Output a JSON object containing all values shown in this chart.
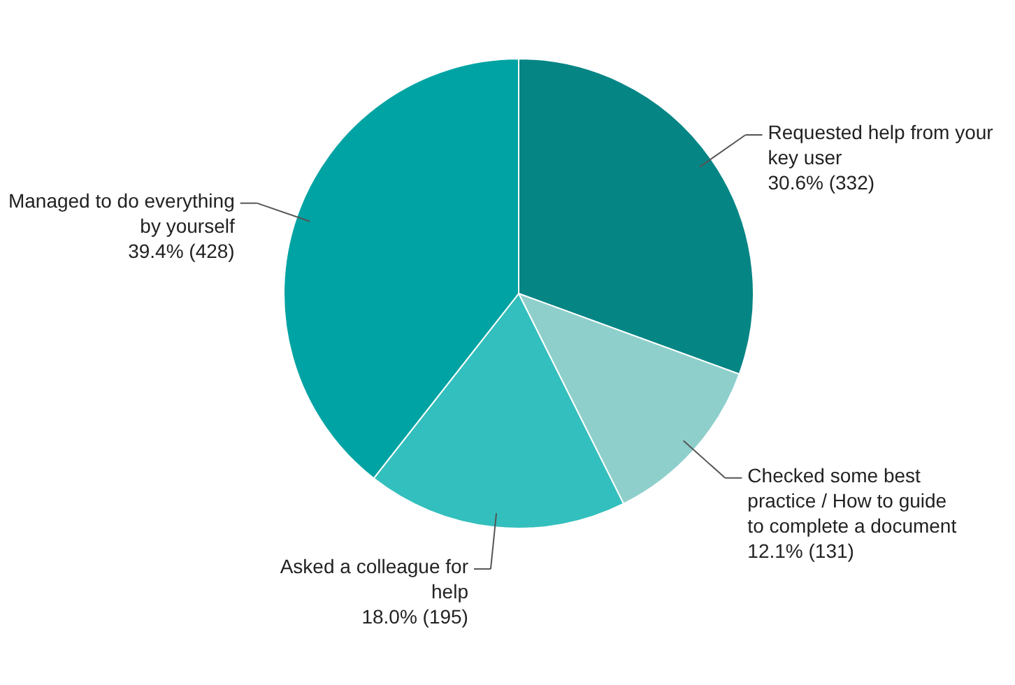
{
  "chart_data": {
    "type": "pie",
    "categories": [
      "Requested help from your key user",
      "Checked some best practice / How to guide to complete a document",
      "Asked a colleague for help",
      "Managed to do everything by yourself"
    ],
    "values": [
      332,
      131,
      195,
      428
    ],
    "value_labels": [
      "30.6% (332)",
      "12.1% (131)",
      "18.0% (195)",
      "39.4% (428)"
    ],
    "colors": [
      "#068585",
      "#8ecfcc",
      "#33bfbd",
      "#00a3a3"
    ]
  }
}
